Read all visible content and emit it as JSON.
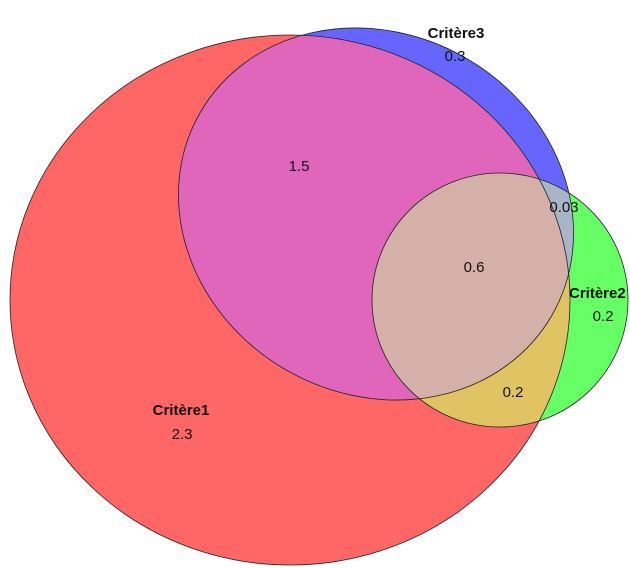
{
  "sets": [
    {
      "name": "Critère1",
      "value": "2.3",
      "color": "#ff6666"
    },
    {
      "name": "Critère2",
      "value": "0.2",
      "color": "#66ff66"
    },
    {
      "name": "Critère3",
      "value": "0.3",
      "color": "#6666ff"
    }
  ],
  "intersections": {
    "c1_c3": "1.5",
    "c2_c3": "0.03",
    "c1_c2": "0.2",
    "all": "0.6"
  },
  "colors": {
    "c1_c3": "#e066bb",
    "c2_c3": "#a8b4c8",
    "c1_c2": "#e0c464",
    "all": "#d4b0a8"
  }
}
